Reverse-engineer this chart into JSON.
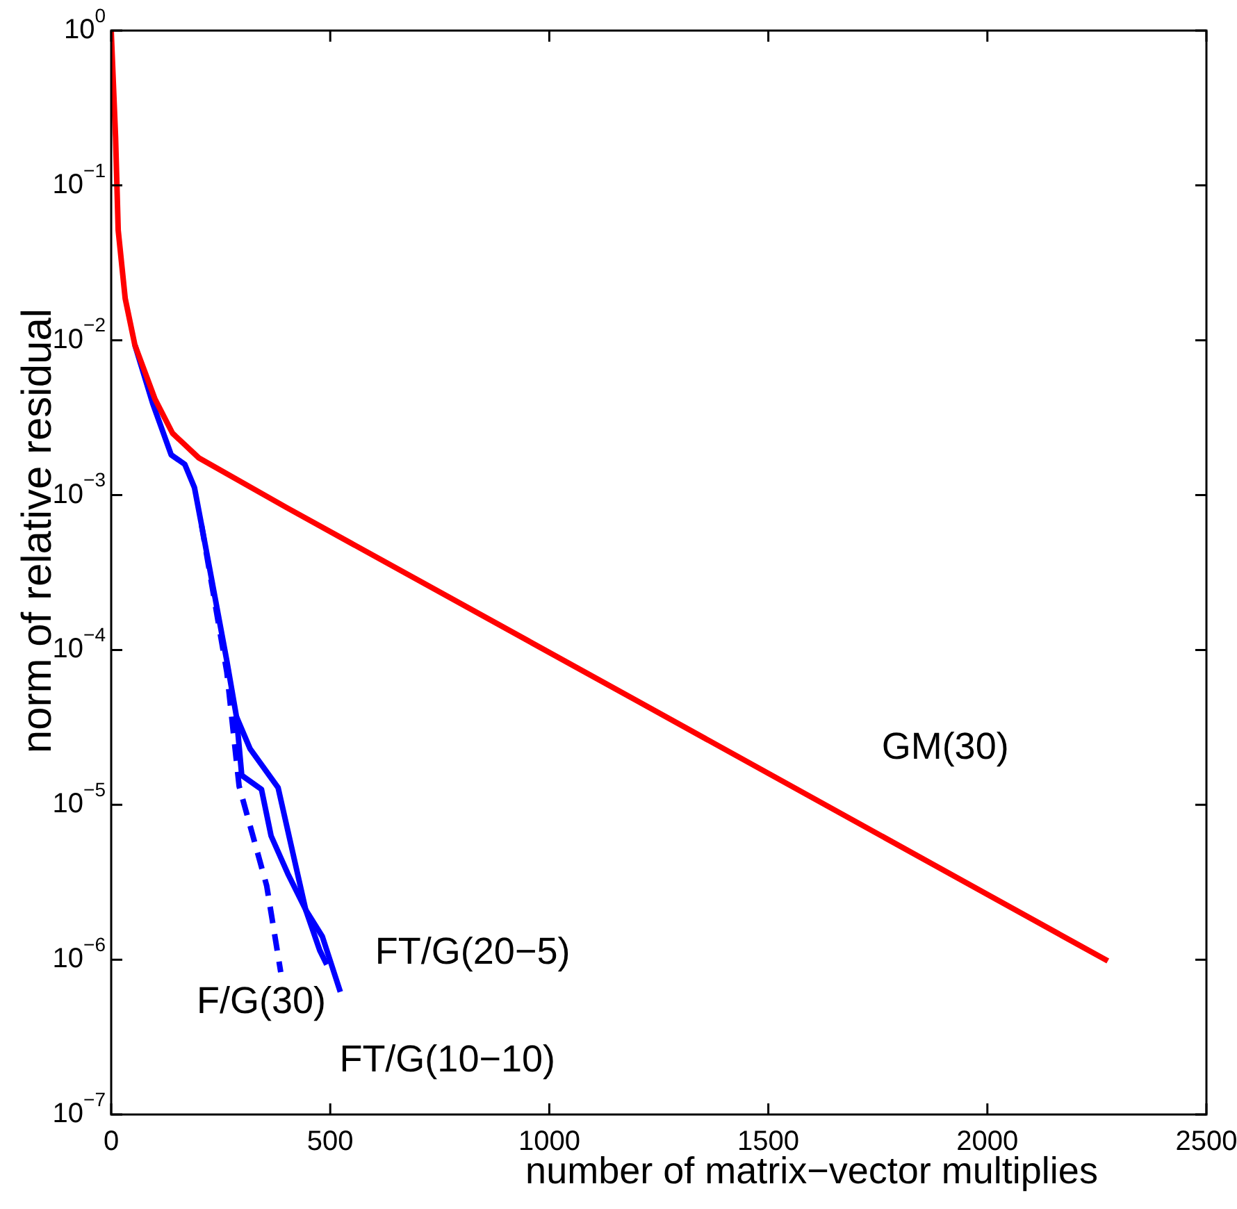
{
  "chart_data": {
    "type": "line",
    "xlabel": "number of matrix−vector multiplies",
    "ylabel": "norm of relative residual",
    "xlim": [
      0,
      2500
    ],
    "xticks": [
      0,
      500,
      1000,
      1500,
      2000,
      2500
    ],
    "ylim": [
      1e-07,
      1
    ],
    "yticks": [
      {
        "value": 1e-07,
        "label": "10$^{−7}$"
      },
      {
        "value": 1e-06,
        "label": "10$^{−6}$"
      },
      {
        "value": 1e-05,
        "label": "10$^{−5}$"
      },
      {
        "value": 0.0001,
        "label": "10$^{−4}$"
      },
      {
        "value": 0.001,
        "label": "10$^{−3}$"
      },
      {
        "value": 0.01,
        "label": "10$^{−2}$"
      },
      {
        "value": 0.1,
        "label": "10$^{−1}$"
      },
      {
        "value": 1,
        "label": "10$^{0}$"
      }
    ],
    "log": "y",
    "grid": false,
    "legend": false,
    "marker": "none",
    "series": [
      {
        "name": "GM(30)",
        "color": "#ff0000",
        "line_style": "solid",
        "x": [
          0,
          10,
          16,
          32,
          54,
          100,
          140,
          200,
          400,
          1200,
          2275
        ],
        "values": [
          1,
          0.204,
          0.0513,
          0.0186,
          0.00933,
          0.00417,
          0.00251,
          0.00174,
          0.000832,
          4.7e-05,
          9.8e-07
        ]
      },
      {
        "name": "F/G(30)",
        "color": "#0000ff",
        "line_style": "dashed",
        "x": [
          206,
          264,
          292,
          355,
          387
        ],
        "values": [
          0.000646,
          7.2e-05,
          1.32e-05,
          3e-06,
          8.3e-07
        ]
      },
      {
        "name": "FT/G(20−5)",
        "color": "#0000ff",
        "line_style": "solid",
        "x": [
          54,
          95,
          137,
          168,
          190,
          206,
          264,
          286,
          298,
          343,
          365,
          403,
          444,
          476,
          492
        ],
        "values": [
          0.00933,
          0.00389,
          0.00182,
          0.00158,
          0.00112,
          0.000646,
          8.5e-05,
          3.7e-05,
          1.55e-05,
          1.26e-05,
          6.3e-06,
          3.6e-06,
          2.1e-06,
          1.15e-06,
          9.3e-07
        ]
      },
      {
        "name": "FT/G(10−10)",
        "color": "#0000ff",
        "line_style": "solid",
        "x": [
          286,
          317,
          381,
          444,
          482,
          523
        ],
        "values": [
          3.7e-05,
          2.3e-05,
          1.29e-05,
          2.1e-06,
          1.41e-06,
          6.2e-07
        ]
      }
    ]
  }
}
